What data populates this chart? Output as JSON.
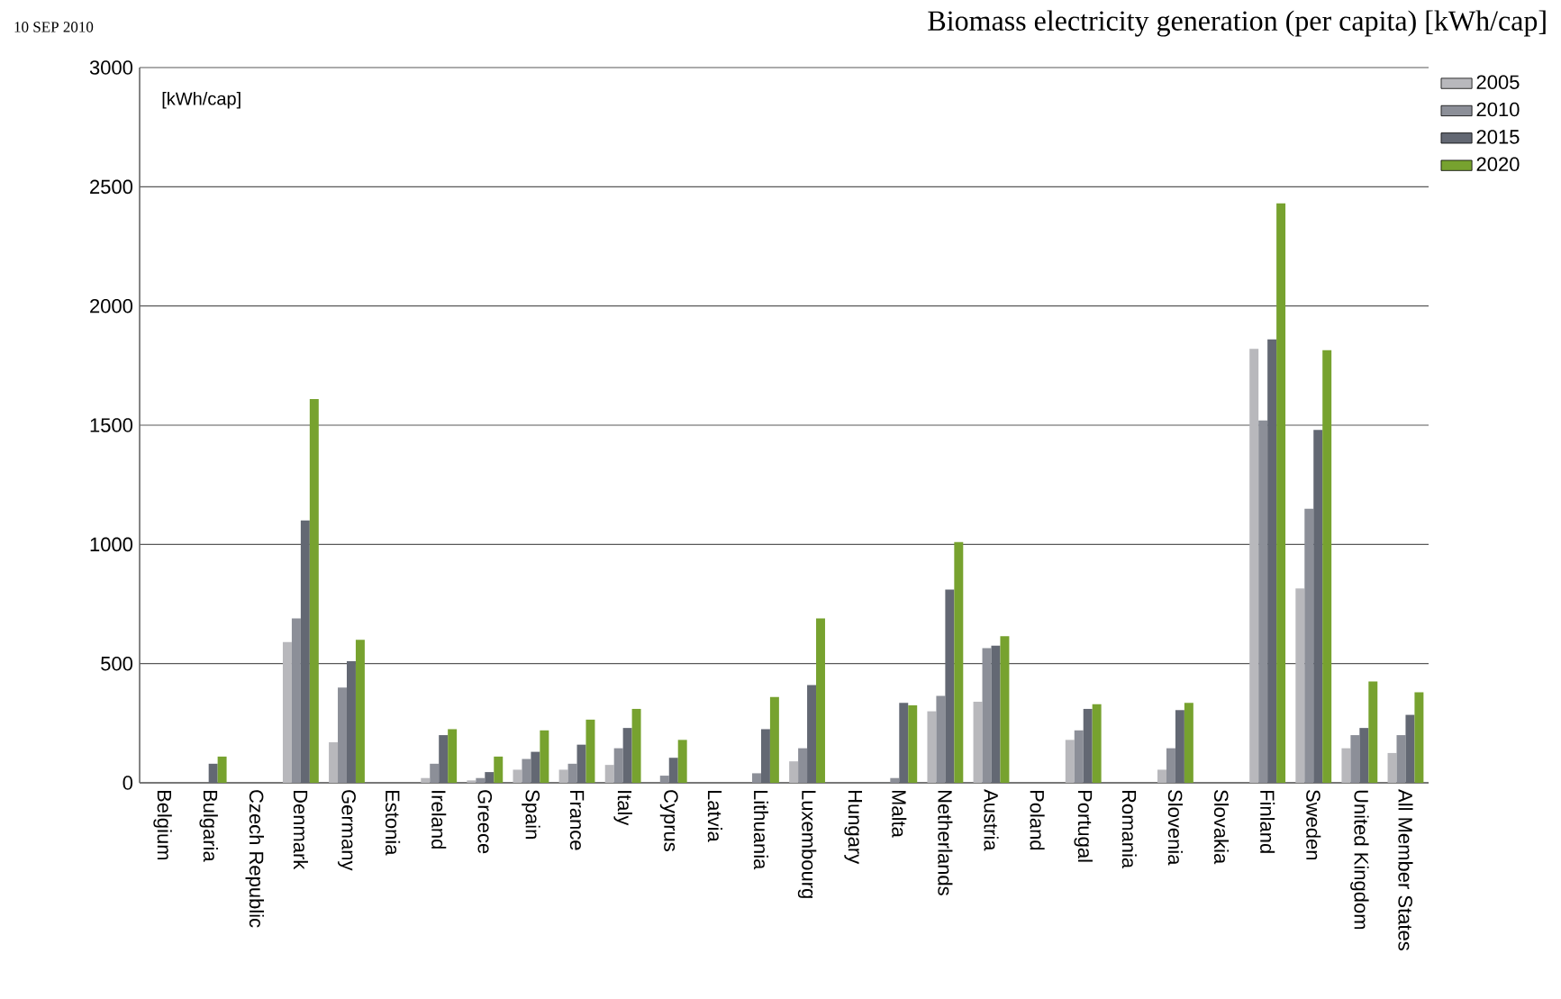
{
  "chart_data": {
    "type": "bar",
    "title": "Biomass electricity generation (per capita) [kWh/cap]",
    "annotations": [
      "10 SEP 2010",
      "[kWh/cap]"
    ],
    "categories": [
      "Belgium",
      "Bulgaria",
      "Czech Republic",
      "Denmark",
      "Germany",
      "Estonia",
      "Ireland",
      "Greece",
      "Spain",
      "France",
      "Italy",
      "Cyprus",
      "Latvia",
      "Lithuania",
      "Luxembourg",
      "Hungary",
      "Malta",
      "Netherlands",
      "Austria",
      "Poland",
      "Portugal",
      "Romania",
      "Slovenia",
      "Slovakia",
      "Finland",
      "Sweden",
      "United Kingdom",
      "All Member States"
    ],
    "series": [
      {
        "name": "2005",
        "color": "#b8b8bc",
        "values": [
          0,
          0,
          0,
          590,
          170,
          0,
          20,
          10,
          55,
          55,
          75,
          0,
          0,
          0,
          90,
          0,
          0,
          300,
          340,
          0,
          180,
          0,
          55,
          0,
          1820,
          815,
          145,
          125
        ]
      },
      {
        "name": "2010",
        "color": "#8c8f98",
        "values": [
          0,
          0,
          0,
          690,
          400,
          0,
          80,
          20,
          100,
          80,
          145,
          30,
          0,
          40,
          145,
          0,
          20,
          365,
          565,
          0,
          220,
          0,
          145,
          0,
          1520,
          1150,
          200,
          200
        ]
      },
      {
        "name": "2015",
        "color": "#636873",
        "values": [
          0,
          80,
          0,
          1100,
          510,
          0,
          200,
          45,
          130,
          160,
          230,
          105,
          0,
          225,
          410,
          0,
          335,
          810,
          575,
          0,
          310,
          0,
          305,
          0,
          1860,
          1480,
          230,
          285
        ]
      },
      {
        "name": "2020",
        "color": "#77a22f",
        "values": [
          0,
          110,
          0,
          1610,
          600,
          0,
          225,
          110,
          220,
          265,
          310,
          180,
          0,
          360,
          690,
          0,
          325,
          1010,
          615,
          0,
          330,
          0,
          335,
          0,
          2430,
          1815,
          425,
          380
        ]
      }
    ],
    "ylim": [
      0,
      3000
    ],
    "yticks": [
      0,
      500,
      1000,
      1500,
      2000,
      2500,
      3000
    ],
    "grid": "y",
    "legend": "top right"
  }
}
